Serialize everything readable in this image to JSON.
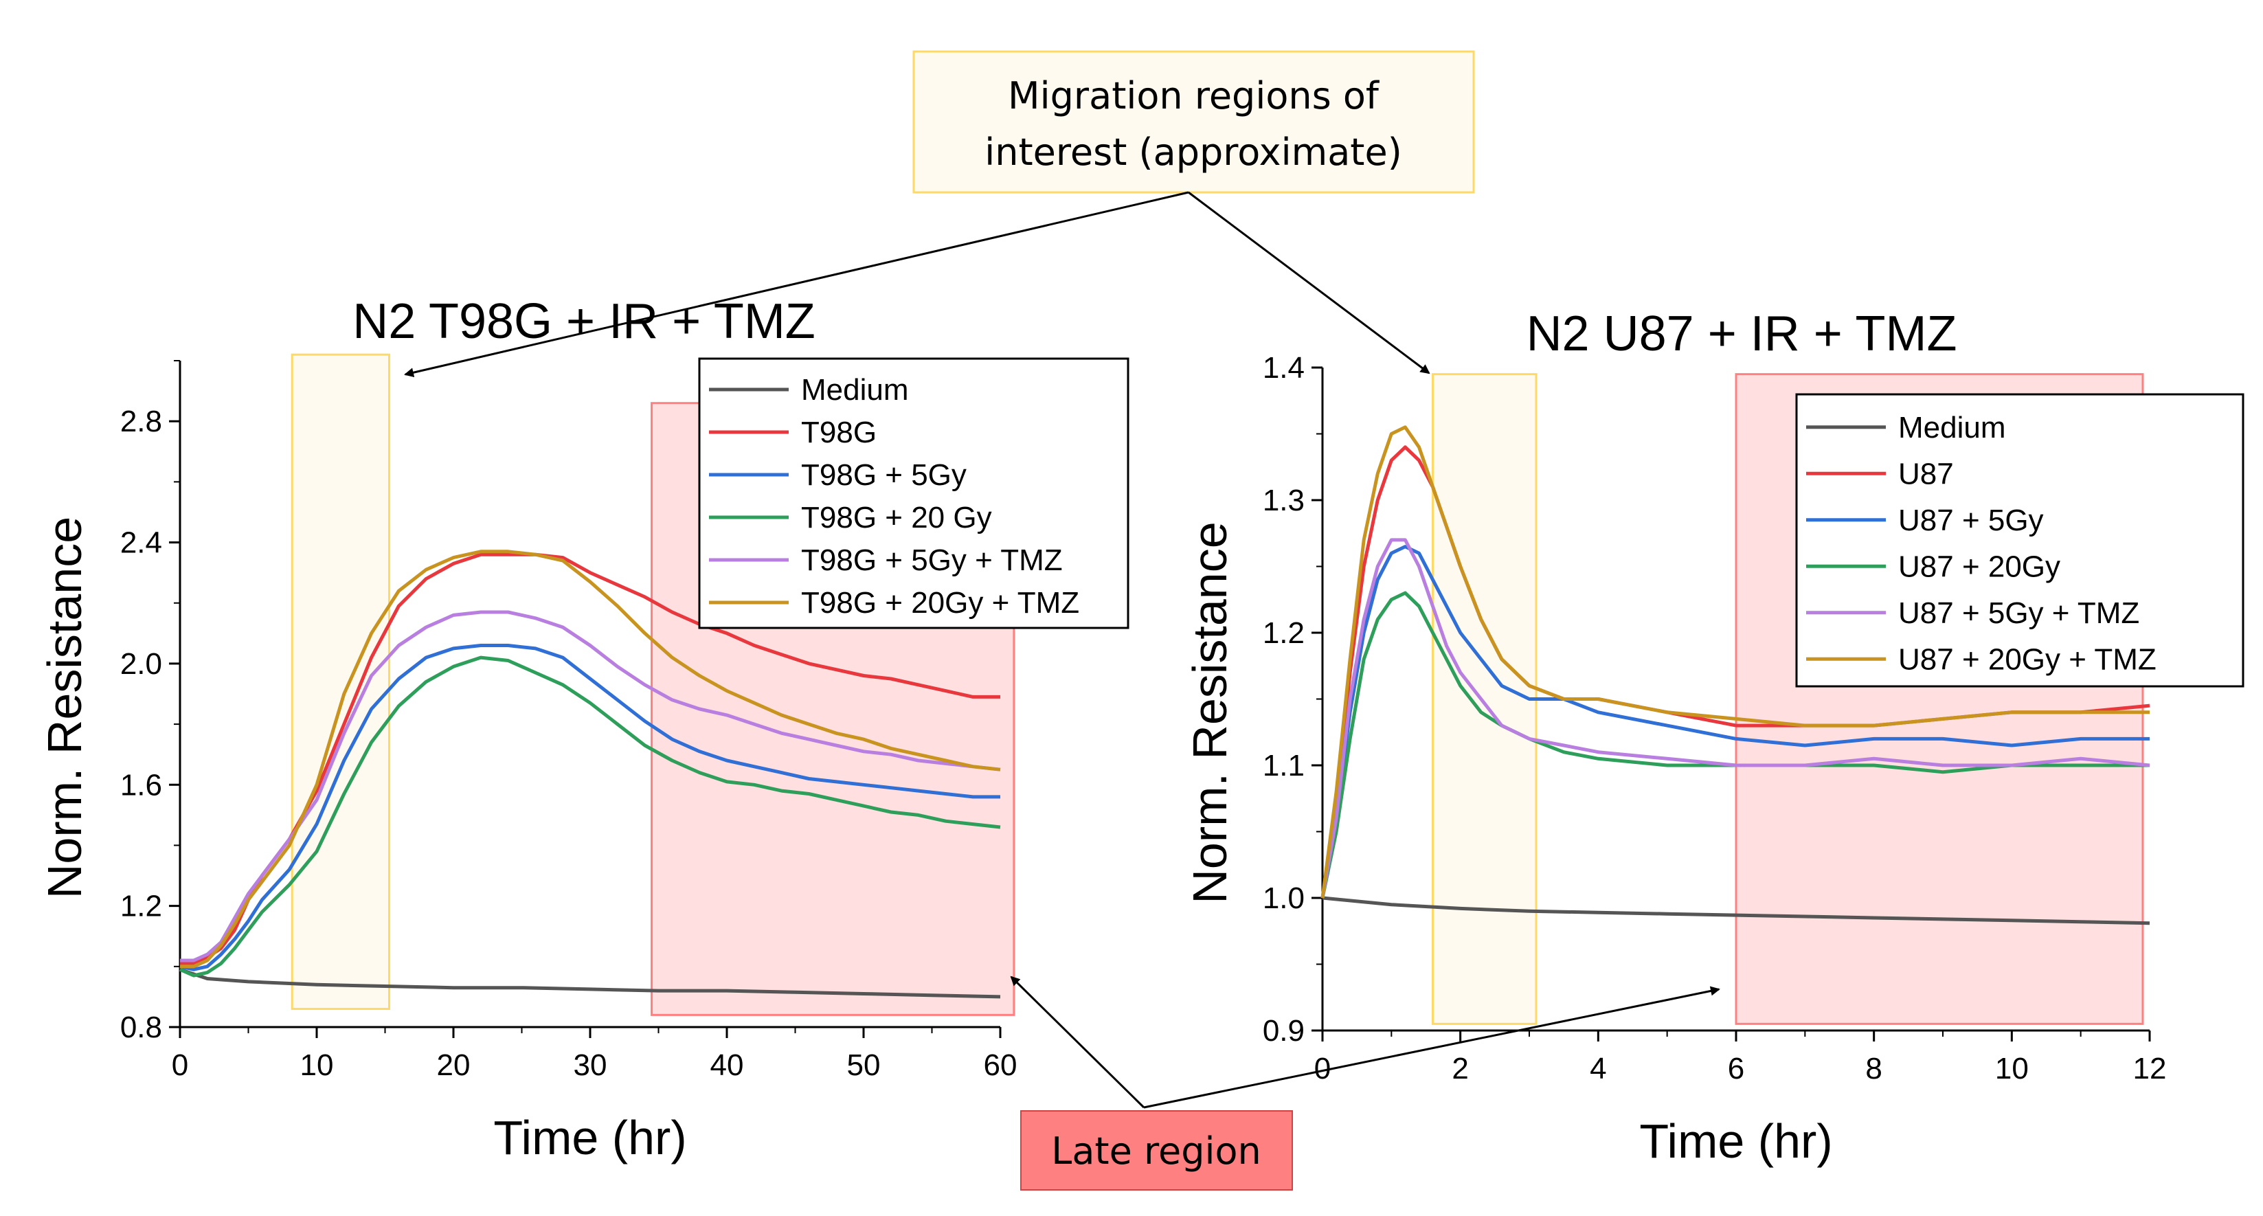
{
  "callouts": {
    "migration_line1": "Migration regions of",
    "migration_line2": "interest (approximate)",
    "late_region": "Late region",
    "migration_fill": "#fffaf0",
    "migration_stroke": "#ffd966",
    "late_fill": "#ff8080",
    "late_stroke": "#ff8080"
  },
  "chart_data": [
    {
      "type": "line",
      "title": "N2 T98G + IR + TMZ",
      "xlabel": "Time (hr)",
      "ylabel": "Norm. Resistance",
      "xlim": [
        0,
        60
      ],
      "ylim": [
        0.8,
        3.0
      ],
      "xticks": [
        "0",
        "10",
        "20",
        "30",
        "40",
        "50",
        "60"
      ],
      "yticks": [
        "0.8",
        "1.2",
        "1.6",
        "2.0",
        "2.4",
        "2.8"
      ],
      "regions": [
        {
          "kind": "migration",
          "x": [
            8.2,
            15.3
          ],
          "y": [
            0.86,
            3.02
          ]
        },
        {
          "kind": "late",
          "x": [
            34.5,
            61.0
          ],
          "y": [
            0.84,
            2.86
          ]
        }
      ],
      "legend_position": "top-right",
      "series": [
        {
          "name": "Medium",
          "color": "#555555",
          "x": [
            0,
            2,
            5,
            10,
            15,
            20,
            25,
            30,
            35,
            40,
            45,
            50,
            55,
            60
          ],
          "y": [
            0.99,
            0.96,
            0.95,
            0.94,
            0.935,
            0.93,
            0.93,
            0.925,
            0.92,
            0.92,
            0.915,
            0.91,
            0.905,
            0.9
          ]
        },
        {
          "name": "T98G",
          "color": "#e8383d",
          "x": [
            0,
            1,
            2,
            3,
            4,
            5,
            6,
            8,
            10,
            12,
            14,
            16,
            18,
            20,
            22,
            24,
            26,
            28,
            30,
            32,
            34,
            36,
            38,
            40,
            42,
            44,
            46,
            48,
            50,
            52,
            54,
            56,
            58,
            60
          ],
          "y": [
            1.01,
            1.01,
            1.03,
            1.06,
            1.12,
            1.22,
            1.3,
            1.42,
            1.58,
            1.8,
            2.02,
            2.19,
            2.28,
            2.33,
            2.36,
            2.36,
            2.36,
            2.35,
            2.3,
            2.26,
            2.22,
            2.17,
            2.13,
            2.1,
            2.06,
            2.03,
            2.0,
            1.98,
            1.96,
            1.95,
            1.93,
            1.91,
            1.89,
            1.89
          ]
        },
        {
          "name": "T98G + 5Gy",
          "color": "#2f6fd6",
          "x": [
            0,
            1,
            2,
            3,
            4,
            5,
            6,
            8,
            10,
            12,
            14,
            16,
            18,
            20,
            22,
            24,
            26,
            28,
            30,
            32,
            34,
            36,
            38,
            40,
            42,
            44,
            46,
            48,
            50,
            52,
            54,
            56,
            58,
            60
          ],
          "y": [
            1.0,
            0.99,
            1.0,
            1.04,
            1.09,
            1.15,
            1.22,
            1.32,
            1.47,
            1.68,
            1.85,
            1.95,
            2.02,
            2.05,
            2.06,
            2.06,
            2.05,
            2.02,
            1.95,
            1.88,
            1.81,
            1.75,
            1.71,
            1.68,
            1.66,
            1.64,
            1.62,
            1.61,
            1.6,
            1.59,
            1.58,
            1.57,
            1.56,
            1.56
          ]
        },
        {
          "name": "T98G + 20 Gy",
          "color": "#2e9e5b",
          "x": [
            0,
            1,
            2,
            3,
            4,
            5,
            6,
            8,
            10,
            12,
            14,
            16,
            18,
            20,
            22,
            24,
            26,
            28,
            30,
            32,
            34,
            36,
            38,
            40,
            42,
            44,
            46,
            48,
            50,
            52,
            54,
            56,
            58,
            60
          ],
          "y": [
            0.99,
            0.97,
            0.98,
            1.01,
            1.06,
            1.12,
            1.18,
            1.27,
            1.38,
            1.57,
            1.74,
            1.86,
            1.94,
            1.99,
            2.02,
            2.01,
            1.97,
            1.93,
            1.87,
            1.8,
            1.73,
            1.68,
            1.64,
            1.61,
            1.6,
            1.58,
            1.57,
            1.55,
            1.53,
            1.51,
            1.5,
            1.48,
            1.47,
            1.46
          ]
        },
        {
          "name": "T98G + 5Gy + TMZ",
          "color": "#b87fe0",
          "x": [
            0,
            1,
            2,
            3,
            4,
            5,
            6,
            8,
            10,
            12,
            14,
            16,
            18,
            20,
            22,
            24,
            26,
            28,
            30,
            32,
            34,
            36,
            38,
            40,
            42,
            44,
            46,
            48,
            50,
            52,
            54,
            56,
            58,
            60
          ],
          "y": [
            1.02,
            1.02,
            1.04,
            1.08,
            1.16,
            1.24,
            1.3,
            1.42,
            1.55,
            1.77,
            1.96,
            2.06,
            2.12,
            2.16,
            2.17,
            2.17,
            2.15,
            2.12,
            2.06,
            1.99,
            1.93,
            1.88,
            1.85,
            1.83,
            1.8,
            1.77,
            1.75,
            1.73,
            1.71,
            1.7,
            1.68,
            1.67,
            1.66,
            1.65
          ]
        },
        {
          "name": "T98G + 20Gy + TMZ",
          "color": "#c8941f",
          "x": [
            0,
            1,
            2,
            3,
            4,
            5,
            6,
            8,
            10,
            12,
            14,
            16,
            18,
            20,
            22,
            24,
            26,
            28,
            30,
            32,
            34,
            36,
            38,
            40,
            42,
            44,
            46,
            48,
            50,
            52,
            54,
            56,
            58,
            60
          ],
          "y": [
            1.0,
            1.0,
            1.02,
            1.07,
            1.14,
            1.22,
            1.28,
            1.4,
            1.6,
            1.9,
            2.1,
            2.24,
            2.31,
            2.35,
            2.37,
            2.37,
            2.36,
            2.34,
            2.27,
            2.19,
            2.1,
            2.02,
            1.96,
            1.91,
            1.87,
            1.83,
            1.8,
            1.77,
            1.75,
            1.72,
            1.7,
            1.68,
            1.66,
            1.65
          ]
        }
      ]
    },
    {
      "type": "line",
      "title": "N2 U87 + IR + TMZ",
      "xlabel": "Time (hr)",
      "ylabel": "Norm. Resistance",
      "xlim": [
        0,
        12
      ],
      "ylim": [
        0.9,
        1.4
      ],
      "xticks": [
        "0",
        "2",
        "4",
        "6",
        "8",
        "10",
        "12"
      ],
      "yticks": [
        "0.9",
        "1.0",
        "1.1",
        "1.2",
        "1.3",
        "1.4"
      ],
      "regions": [
        {
          "kind": "migration",
          "x": [
            1.6,
            3.1
          ],
          "y": [
            0.905,
            1.395
          ]
        },
        {
          "kind": "late",
          "x": [
            6.0,
            11.9
          ],
          "y": [
            0.905,
            1.395
          ]
        }
      ],
      "legend_position": "top-right",
      "series": [
        {
          "name": "Medium",
          "color": "#555555",
          "x": [
            0,
            1,
            2,
            3,
            4,
            5,
            6,
            7,
            8,
            9,
            10,
            11,
            12
          ],
          "y": [
            1.0,
            0.995,
            0.992,
            0.99,
            0.989,
            0.988,
            0.987,
            0.986,
            0.985,
            0.984,
            0.983,
            0.982,
            0.981
          ]
        },
        {
          "name": "U87",
          "color": "#e8383d",
          "x": [
            0,
            0.2,
            0.4,
            0.6,
            0.8,
            1.0,
            1.2,
            1.4,
            1.6,
            1.8,
            2.0,
            2.3,
            2.6,
            3.0,
            3.5,
            4.0,
            5.0,
            6.0,
            7.0,
            8.0,
            9.0,
            10.0,
            11.0,
            12.0
          ],
          "y": [
            1.0,
            1.07,
            1.17,
            1.25,
            1.3,
            1.33,
            1.34,
            1.33,
            1.31,
            1.28,
            1.25,
            1.21,
            1.18,
            1.16,
            1.15,
            1.15,
            1.14,
            1.13,
            1.13,
            1.13,
            1.135,
            1.14,
            1.14,
            1.145
          ]
        },
        {
          "name": "U87 + 5Gy",
          "color": "#2f6fd6",
          "x": [
            0,
            0.2,
            0.4,
            0.6,
            0.8,
            1.0,
            1.2,
            1.4,
            1.6,
            1.8,
            2.0,
            2.3,
            2.6,
            3.0,
            3.5,
            4.0,
            5.0,
            6.0,
            7.0,
            8.0,
            9.0,
            10.0,
            11.0,
            12.0
          ],
          "y": [
            1.0,
            1.06,
            1.14,
            1.2,
            1.24,
            1.26,
            1.265,
            1.26,
            1.24,
            1.22,
            1.2,
            1.18,
            1.16,
            1.15,
            1.15,
            1.14,
            1.13,
            1.12,
            1.115,
            1.12,
            1.12,
            1.115,
            1.12,
            1.12
          ]
        },
        {
          "name": "U87 + 20Gy",
          "color": "#2e9e5b",
          "x": [
            0,
            0.2,
            0.4,
            0.6,
            0.8,
            1.0,
            1.2,
            1.4,
            1.6,
            1.8,
            2.0,
            2.3,
            2.6,
            3.0,
            3.5,
            4.0,
            5.0,
            6.0,
            7.0,
            8.0,
            9.0,
            10.0,
            11.0,
            12.0
          ],
          "y": [
            1.0,
            1.05,
            1.12,
            1.18,
            1.21,
            1.225,
            1.23,
            1.22,
            1.2,
            1.18,
            1.16,
            1.14,
            1.13,
            1.12,
            1.11,
            1.105,
            1.1,
            1.1,
            1.1,
            1.1,
            1.095,
            1.1,
            1.1,
            1.1
          ]
        },
        {
          "name": "U87 + 5Gy + TMZ",
          "color": "#b87fe0",
          "x": [
            0,
            0.2,
            0.4,
            0.6,
            0.8,
            1.0,
            1.2,
            1.4,
            1.6,
            1.8,
            2.0,
            2.3,
            2.6,
            3.0,
            3.5,
            4.0,
            5.0,
            6.0,
            7.0,
            8.0,
            9.0,
            10.0,
            11.0,
            12.0
          ],
          "y": [
            1.0,
            1.06,
            1.15,
            1.21,
            1.25,
            1.27,
            1.27,
            1.25,
            1.22,
            1.19,
            1.17,
            1.15,
            1.13,
            1.12,
            1.115,
            1.11,
            1.105,
            1.1,
            1.1,
            1.105,
            1.1,
            1.1,
            1.105,
            1.1
          ]
        },
        {
          "name": "U87 + 20Gy + TMZ",
          "color": "#c8941f",
          "x": [
            0,
            0.2,
            0.4,
            0.6,
            0.8,
            1.0,
            1.2,
            1.4,
            1.6,
            1.8,
            2.0,
            2.3,
            2.6,
            3.0,
            3.5,
            4.0,
            5.0,
            6.0,
            7.0,
            8.0,
            9.0,
            10.0,
            11.0,
            12.0
          ],
          "y": [
            1.0,
            1.08,
            1.18,
            1.27,
            1.32,
            1.35,
            1.355,
            1.34,
            1.31,
            1.28,
            1.25,
            1.21,
            1.18,
            1.16,
            1.15,
            1.15,
            1.14,
            1.135,
            1.13,
            1.13,
            1.135,
            1.14,
            1.14,
            1.14
          ]
        }
      ]
    }
  ]
}
